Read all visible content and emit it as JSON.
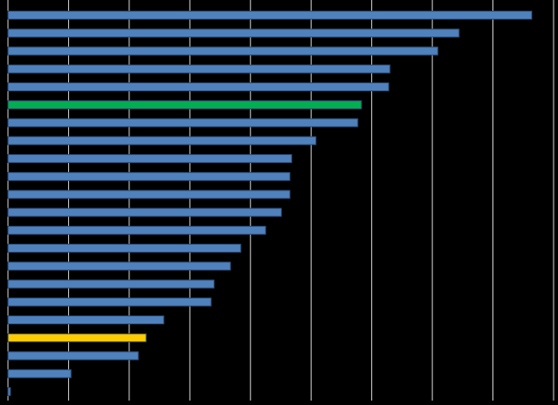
{
  "chart_data": {
    "type": "hbar",
    "values": [
      8.64,
      7.44,
      7.09,
      6.3,
      6.28,
      5.83,
      5.77,
      5.08,
      4.68,
      4.65,
      4.65,
      4.51,
      4.25,
      3.84,
      3.67,
      3.4,
      3.35,
      2.57,
      2.28,
      2.15,
      1.04,
      0.04
    ],
    "colors": [
      "#4f81bd",
      "#4f81bd",
      "#4f81bd",
      "#4f81bd",
      "#4f81bd",
      "#00b050",
      "#4f81bd",
      "#4f81bd",
      "#4f81bd",
      "#4f81bd",
      "#4f81bd",
      "#4f81bd",
      "#4f81bd",
      "#4f81bd",
      "#4f81bd",
      "#4f81bd",
      "#4f81bd",
      "#4f81bd",
      "#ffcc00",
      "#4f81bd",
      "#4f81bd",
      "#4f81bd"
    ],
    "xlim": [
      0,
      9
    ],
    "xticks": [
      0,
      1,
      2,
      3,
      4,
      5,
      6,
      7,
      8,
      9
    ],
    "grid": true
  }
}
